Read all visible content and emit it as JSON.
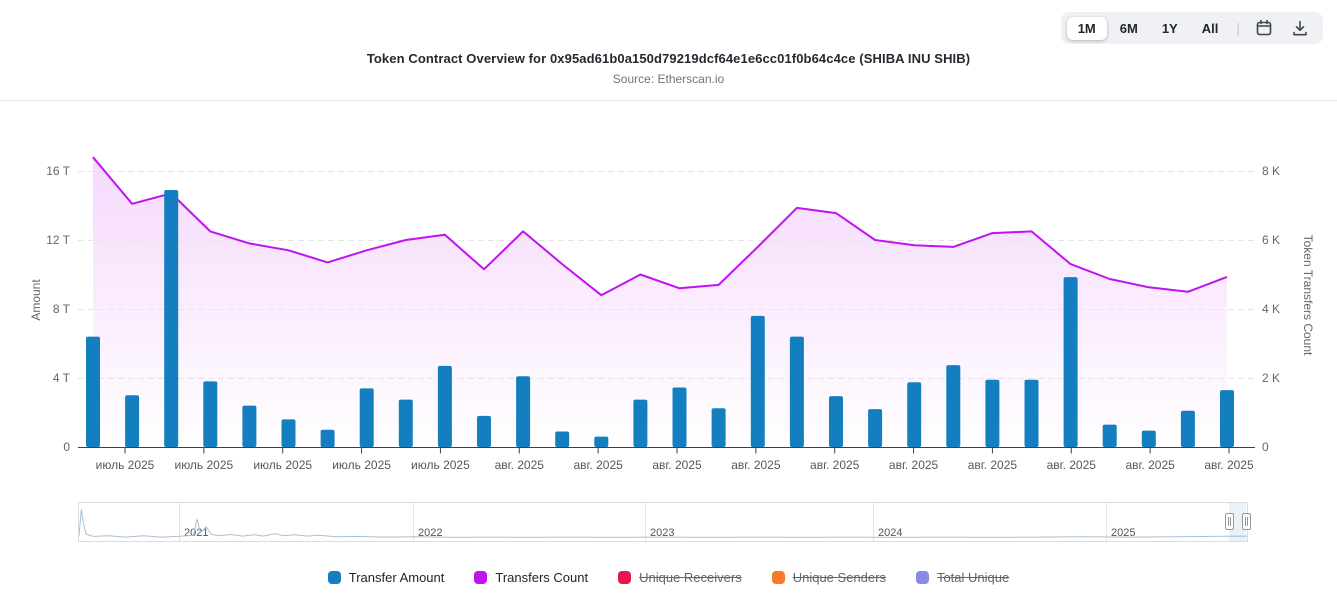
{
  "header": {
    "title": "Token Contract Overview for 0x95ad61b0a150d79219dcf64e1e6cc01f0b64c4ce (SHIBA INU SHIB)",
    "subtitle": "Source: Etherscan.io"
  },
  "range_selector": {
    "buttons": [
      "1M",
      "6M",
      "1Y",
      "All"
    ],
    "selected": "1M",
    "separator": "|",
    "calendar_icon": "calendar-icon",
    "download_icon": "download-icon"
  },
  "chart_data": {
    "type": "bar",
    "subtype": "column + line combo, dual axis time series",
    "x_tick_labels": [
      "июль 2025",
      "июль 2025",
      "июль 2025",
      "июль 2025",
      "июль 2025",
      "авг. 2025",
      "авг. 2025",
      "авг. 2025",
      "авг. 2025",
      "авг. 2025",
      "авг. 2025",
      "авг. 2025",
      "авг. 2025",
      "авг. 2025",
      "авг. 2025"
    ],
    "left_axis": {
      "title": "Amount",
      "unit": "T",
      "ticks": [
        "0",
        "4 T",
        "8 T",
        "12 T",
        "16 T"
      ],
      "range": [
        0,
        16
      ],
      "grid": true
    },
    "right_axis": {
      "title": "Token Transfers Count",
      "unit": "K",
      "ticks": [
        "0",
        "2 K",
        "4 K",
        "6 K",
        "8 K"
      ],
      "range": [
        0,
        8
      ]
    },
    "series": [
      {
        "name": "Transfer Amount",
        "type": "column",
        "axis": "left",
        "unit": "T",
        "color": "#147fc0",
        "visible": true,
        "values": [
          6.4,
          3.0,
          14.9,
          3.8,
          2.4,
          1.6,
          1.0,
          3.4,
          2.75,
          4.7,
          1.8,
          4.1,
          0.9,
          0.6,
          2.75,
          3.45,
          2.25,
          7.6,
          6.4,
          2.95,
          2.2,
          3.75,
          4.75,
          3.9,
          3.9,
          9.85,
          1.3,
          0.95,
          2.1,
          3.3
        ]
      },
      {
        "name": "Transfers Count",
        "type": "line",
        "axis": "right",
        "unit": "K",
        "color": "#c113ef",
        "visible": true,
        "values": [
          8.4,
          7.05,
          7.35,
          6.25,
          5.9,
          5.7,
          5.35,
          5.7,
          6.0,
          6.15,
          5.15,
          6.25,
          5.3,
          4.4,
          5.0,
          4.6,
          4.7,
          5.8,
          6.93,
          6.78,
          6.0,
          5.85,
          5.8,
          6.2,
          6.25,
          5.3,
          4.87,
          4.63,
          4.5,
          4.93
        ]
      },
      {
        "name": "Unique Receivers",
        "type": "line",
        "color": "#e8174f",
        "visible": false,
        "values": []
      },
      {
        "name": "Unique Senders",
        "type": "line",
        "color": "#f87a28",
        "visible": false,
        "values": []
      },
      {
        "name": "Total Unique",
        "type": "line",
        "color": "#8889e8",
        "visible": false,
        "values": []
      }
    ],
    "legend_position": "bottom",
    "navigator": {
      "year_labels": [
        "2021",
        "2022",
        "2023",
        "2024",
        "2025"
      ],
      "selected_window": "right edge (latest month)",
      "spark": [
        [
          0.0,
          0.1
        ],
        [
          0.002,
          0.92
        ],
        [
          0.004,
          0.45
        ],
        [
          0.006,
          0.16
        ],
        [
          0.012,
          0.08
        ],
        [
          0.025,
          0.1
        ],
        [
          0.04,
          0.06
        ],
        [
          0.055,
          0.1
        ],
        [
          0.07,
          0.06
        ],
        [
          0.085,
          0.08
        ],
        [
          0.098,
          0.12
        ],
        [
          0.101,
          0.62
        ],
        [
          0.104,
          0.2
        ],
        [
          0.109,
          0.38
        ],
        [
          0.113,
          0.15
        ],
        [
          0.12,
          0.1
        ],
        [
          0.13,
          0.14
        ],
        [
          0.14,
          0.09
        ],
        [
          0.15,
          0.13
        ],
        [
          0.158,
          0.09
        ],
        [
          0.168,
          0.17
        ],
        [
          0.175,
          0.1
        ],
        [
          0.185,
          0.13
        ],
        [
          0.195,
          0.09
        ],
        [
          0.205,
          0.12
        ],
        [
          0.22,
          0.07
        ],
        [
          0.24,
          0.08
        ],
        [
          0.26,
          0.06
        ],
        [
          0.29,
          0.07
        ],
        [
          0.32,
          0.05
        ],
        [
          0.35,
          0.06
        ],
        [
          0.38,
          0.05
        ],
        [
          0.42,
          0.06
        ],
        [
          0.46,
          0.05
        ],
        [
          0.5,
          0.06
        ],
        [
          0.54,
          0.05
        ],
        [
          0.58,
          0.06
        ],
        [
          0.62,
          0.05
        ],
        [
          0.66,
          0.06
        ],
        [
          0.7,
          0.05
        ],
        [
          0.74,
          0.06
        ],
        [
          0.78,
          0.05
        ],
        [
          0.82,
          0.06
        ],
        [
          0.86,
          0.07
        ],
        [
          0.9,
          0.06
        ],
        [
          0.94,
          0.07
        ],
        [
          0.97,
          0.08
        ],
        [
          1.0,
          0.09
        ]
      ]
    }
  }
}
